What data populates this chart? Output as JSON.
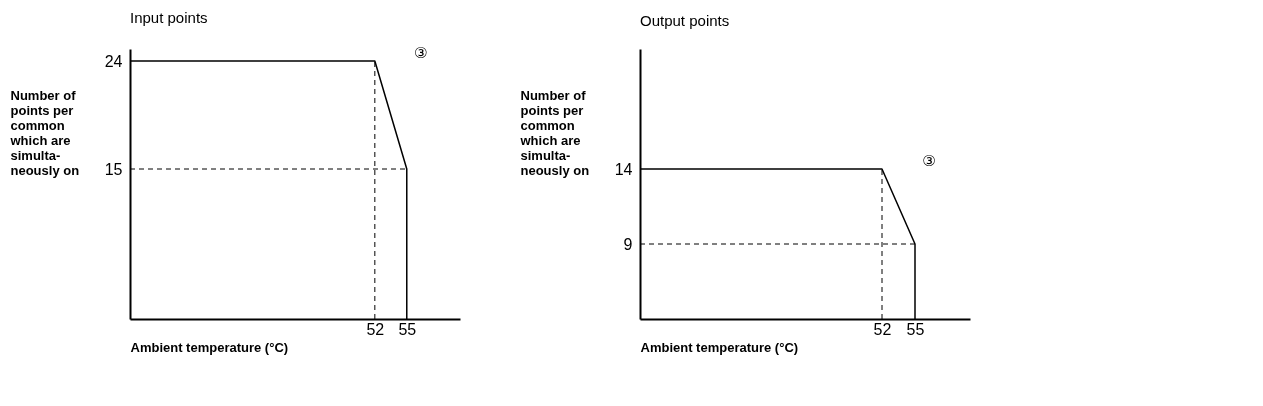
{
  "chart_data": [
    {
      "type": "line",
      "title": "Input points",
      "xlabel": "Ambient temperature (°C)",
      "ylabel": "Number of\npoints per\ncommon\nwhich are\nsimulta-\nneously on",
      "x": [
        29,
        52,
        55,
        55
      ],
      "series": [
        {
          "color": "#000000",
          "values": [
            24,
            24,
            15,
            2.5
          ]
        }
      ],
      "xlim": [
        29,
        60
      ],
      "ylim": [
        2.5,
        25
      ],
      "xticks": [
        52,
        55
      ],
      "yticks": [
        15,
        24
      ],
      "ref_lines": [
        {
          "axis": "y",
          "value": 15,
          "line_style": "dashed",
          "color": "#000000"
        },
        {
          "axis": "x",
          "value": 52,
          "line_style": "dashed",
          "color": "#000000"
        }
      ],
      "annotations": [
        "③"
      ],
      "grid": false
    },
    {
      "type": "line",
      "title": "Output points",
      "xlabel": "Ambient temperature (°C)",
      "ylabel": "Number of\npoints per\ncommon\nwhich are\nsimulta-\nneously on",
      "x": [
        30,
        52,
        55,
        55
      ],
      "series": [
        {
          "color": "#000000",
          "values": [
            14,
            14,
            9,
            4
          ]
        }
      ],
      "xlim": [
        30,
        60
      ],
      "ylim": [
        4,
        22
      ],
      "xticks": [
        52,
        55
      ],
      "yticks": [
        9,
        14
      ],
      "ref_lines": [
        {
          "axis": "y",
          "value": 9,
          "line_style": "dashed",
          "color": "#000000"
        },
        {
          "axis": "x",
          "value": 52,
          "line_style": "dashed",
          "color": "#000000"
        }
      ],
      "annotations": [
        "③"
      ],
      "grid": false
    }
  ]
}
